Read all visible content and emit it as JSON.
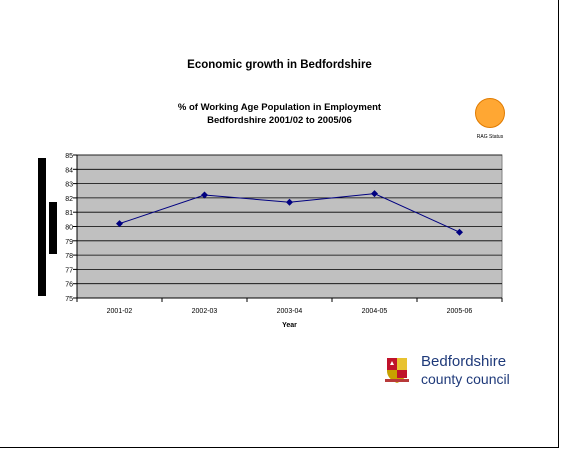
{
  "page": {
    "main_title": "Economic growth in Bedfordshire"
  },
  "rag": {
    "label": "RAG Status",
    "color": "#ffa733"
  },
  "logo": {
    "line1": "Bedfordshire",
    "line2": "county council",
    "color": "#1f3a7a"
  },
  "chart_data": {
    "type": "line",
    "title_line1": "% of Working Age Population in Employment",
    "title_line2": "Bedfordshire 2001/02 to 2005/06",
    "xlabel": "Year",
    "ylabel": "",
    "ylim": [
      75,
      85
    ],
    "ytick_step": 1,
    "grid": true,
    "categories": [
      "2001-02",
      "2002-03",
      "2003-04",
      "2004-05",
      "2005-06"
    ],
    "series": [
      {
        "values": [
          80.2,
          82.2,
          81.7,
          82.3,
          79.6
        ],
        "color": "#000080"
      }
    ],
    "plot_bg": "#c0c0c0"
  }
}
